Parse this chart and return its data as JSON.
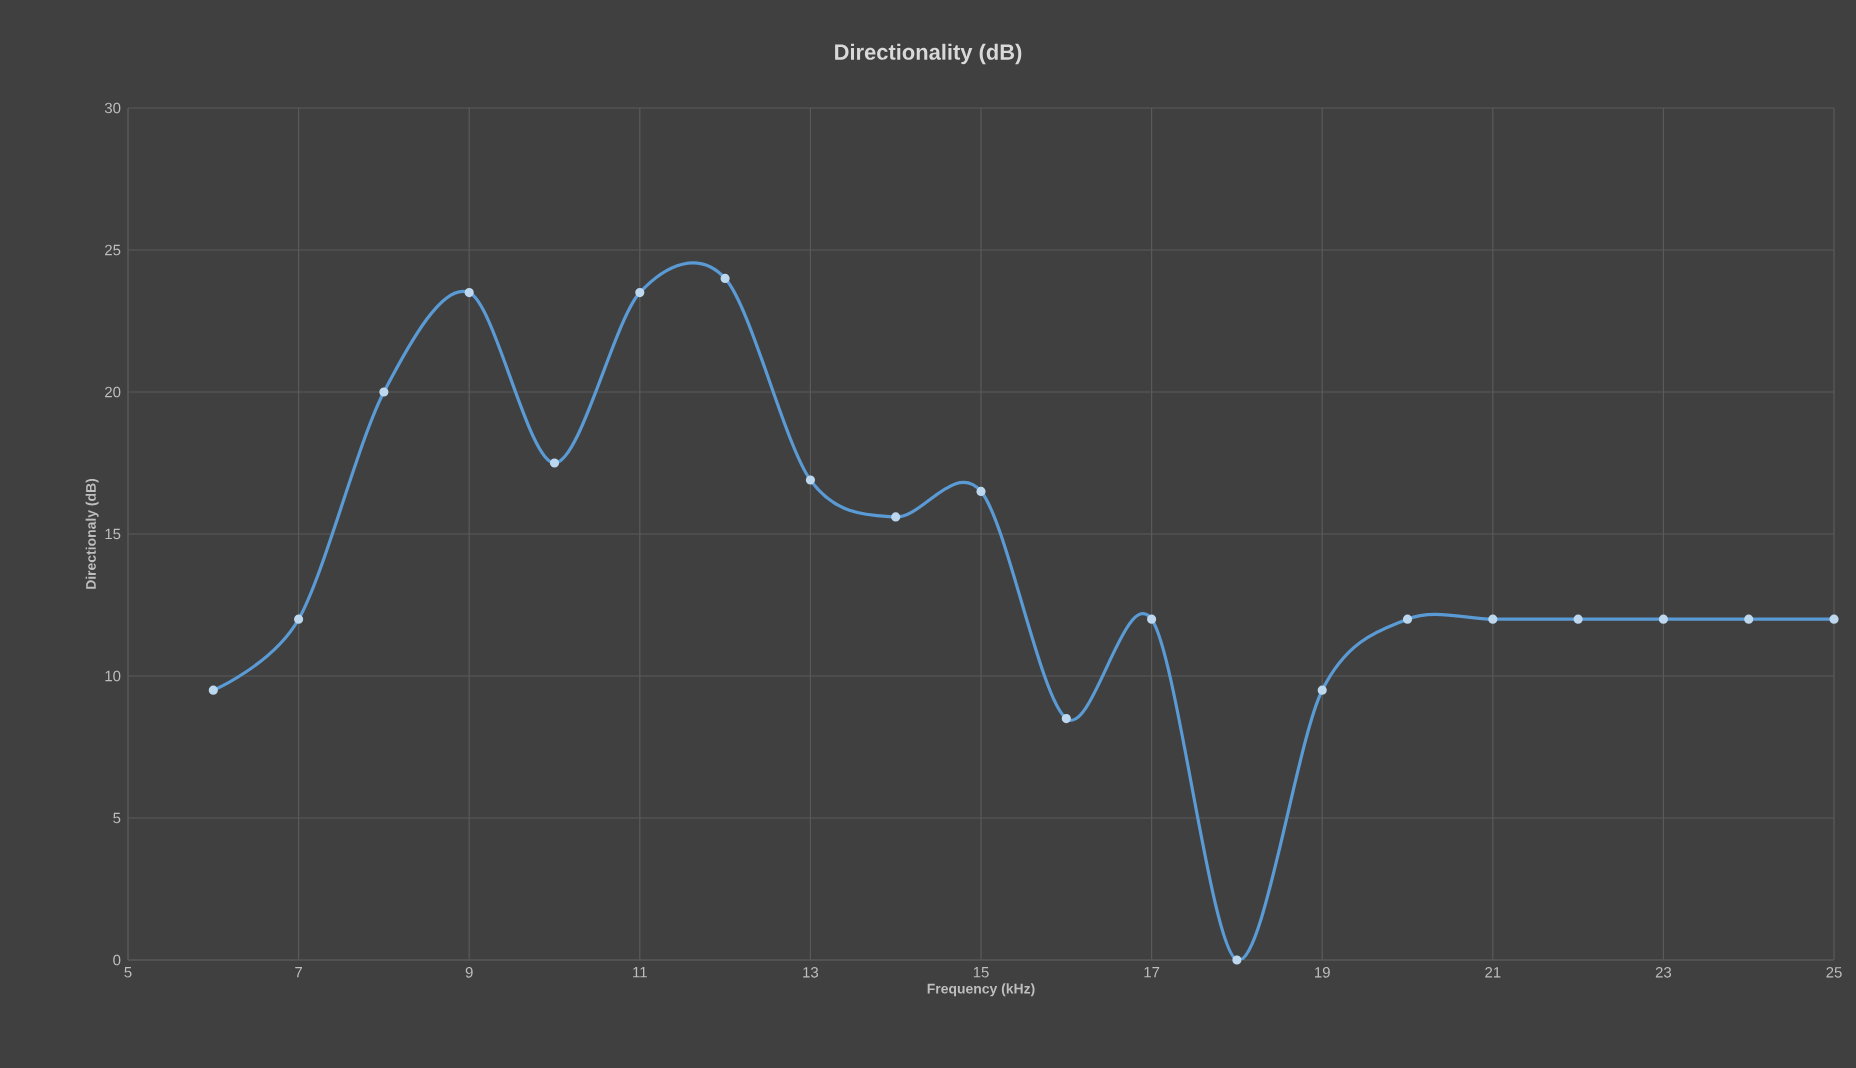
{
  "chart_data": {
    "type": "line",
    "title": "Directionality (dB)",
    "xlabel": "Frequency (kHz)",
    "ylabel": "Directionaly (dB)",
    "x": [
      6,
      7,
      8,
      9,
      10,
      11,
      12,
      13,
      14,
      15,
      16,
      17,
      18,
      19,
      20,
      21,
      22,
      23,
      24,
      25
    ],
    "series": [
      {
        "color": "#5b9bd5",
        "values": [
          9.5,
          12,
          20,
          23.5,
          17.5,
          23.5,
          24,
          16.9,
          15.6,
          16.5,
          8.5,
          12,
          0,
          9.5,
          12,
          12,
          12,
          12,
          12,
          12
        ]
      }
    ],
    "xlim": [
      5,
      25
    ],
    "xticks": [
      5,
      7,
      9,
      11,
      13,
      15,
      17,
      19,
      21,
      23,
      25
    ],
    "ylim": [
      0,
      30
    ],
    "yticks": [
      0,
      5,
      10,
      15,
      20,
      25,
      30
    ],
    "grid": true,
    "marker": "circle",
    "line_style": "solid"
  }
}
